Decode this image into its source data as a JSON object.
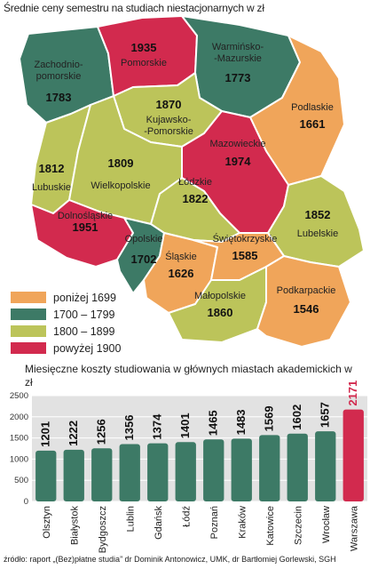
{
  "map": {
    "title": "Średnie ceny semestru na studiach niestacjonarnych w zł",
    "regions": [
      {
        "id": "zachodniopomorskie",
        "name_lines": [
          "Zachodnio-",
          "pomorskie"
        ],
        "value": "1783",
        "color": "#3d7a66"
      },
      {
        "id": "pomorskie",
        "name_lines": [
          "Pomorskie"
        ],
        "value": "1935",
        "color": "#d22a4e"
      },
      {
        "id": "warminsko-mazurskie",
        "name_lines": [
          "Warmińsko-",
          "-Mazurskie"
        ],
        "value": "1773",
        "color": "#3d7a66"
      },
      {
        "id": "podlaskie",
        "name_lines": [
          "Podlaskie"
        ],
        "value": "1661",
        "color": "#f0a55a"
      },
      {
        "id": "kujawsko-pomorskie",
        "name_lines": [
          "Kujawsko-",
          "-Pomorskie"
        ],
        "value": "1870",
        "color": "#bcc45a"
      },
      {
        "id": "mazowieckie",
        "name_lines": [
          "Mazowieckie"
        ],
        "value": "1974",
        "color": "#d22a4e"
      },
      {
        "id": "lubuskie",
        "name_lines": [
          "Lubuskie"
        ],
        "value": "1812",
        "color": "#bcc45a"
      },
      {
        "id": "wielkopolskie",
        "name_lines": [
          "Wielkopolskie"
        ],
        "value": "1809",
        "color": "#bcc45a"
      },
      {
        "id": "lodzkie",
        "name_lines": [
          "Łódzkie"
        ],
        "value": "1822",
        "color": "#bcc45a"
      },
      {
        "id": "lubelskie",
        "name_lines": [
          "Lubelskie"
        ],
        "value": "1852",
        "color": "#bcc45a"
      },
      {
        "id": "dolnoslaskie",
        "name_lines": [
          "Dolnośląskie"
        ],
        "value": "1951",
        "color": "#d22a4e"
      },
      {
        "id": "opolskie",
        "name_lines": [
          "Opolskie"
        ],
        "value": "1702",
        "color": "#3d7a66"
      },
      {
        "id": "slaskie",
        "name_lines": [
          "Śląskie"
        ],
        "value": "1626",
        "color": "#f0a55a"
      },
      {
        "id": "swietokrzyskie",
        "name_lines": [
          "Świętokrzyskie"
        ],
        "value": "1585",
        "color": "#f0a55a"
      },
      {
        "id": "malopolskie",
        "name_lines": [
          "Małopolskie"
        ],
        "value": "1860",
        "color": "#bcc45a"
      },
      {
        "id": "podkarpackie",
        "name_lines": [
          "Podkarpackie"
        ],
        "value": "1546",
        "color": "#f0a55a"
      }
    ],
    "legend": [
      {
        "label": "poniżej 1699",
        "color": "#f0a55a"
      },
      {
        "label": "1700 – 1799",
        "color": "#3d7a66"
      },
      {
        "label": "1800 – 1899",
        "color": "#bcc45a"
      },
      {
        "label": "powyżej 1900",
        "color": "#d22a4e"
      }
    ]
  },
  "bar_chart": {
    "title": "Miesięczne koszty studiowania w głównych miastach akademickich w zł",
    "source": "źródło: raport „(Bez)płatne studia” dr Dominik Antonowicz, UMK, dr Bartłomiej Gorlewski, SGH",
    "colors": {
      "default": "#3d7a66",
      "highlight": "#d22a4e",
      "plot_bg": "#e2e2e2"
    }
  },
  "chart_data": {
    "type": "bar",
    "title": "Miesięczne koszty studiowania w głównych miastach akademickich w zł",
    "categories": [
      "Olsztyn",
      "Białystok",
      "Bydgoszcz",
      "Lublin",
      "Gdańsk",
      "Łódź",
      "Poznań",
      "Kraków",
      "Katowice",
      "Szczecin",
      "Wrocław",
      "Warszawa"
    ],
    "values": [
      1201,
      1222,
      1256,
      1356,
      1374,
      1401,
      1465,
      1483,
      1569,
      1602,
      1657,
      2171
    ],
    "highlight": [
      "Warszawa"
    ],
    "ylim": [
      0,
      2500
    ],
    "yticks": [
      0,
      500,
      1000,
      1500,
      2000,
      2500
    ],
    "xlabel": "",
    "ylabel": "",
    "grid": true
  }
}
